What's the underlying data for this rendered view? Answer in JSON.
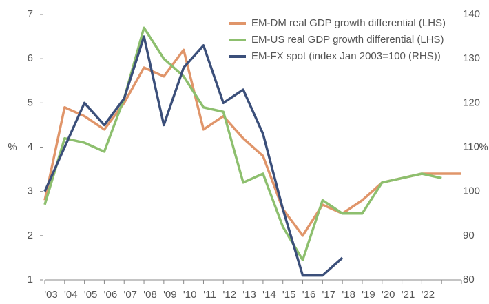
{
  "chart_data": {
    "type": "line",
    "categories": [
      "'03",
      "'04",
      "'05",
      "'06",
      "'07",
      "'08",
      "'09",
      "'10",
      "'11",
      "'12",
      "'13",
      "'14",
      "'15",
      "'16",
      "'17",
      "'18",
      "'19",
      "'20",
      "'21",
      "'22",
      null,
      null
    ],
    "ylim": [
      1,
      7
    ],
    "yticks": [
      1,
      2,
      3,
      4,
      5,
      6,
      7
    ],
    "ylabel": "%",
    "y2lim": [
      80,
      140
    ],
    "y2ticks": [
      80,
      90,
      100,
      110,
      120,
      130,
      140
    ],
    "y2label": "%",
    "series": [
      {
        "name": "EM-DM real GDP growth differential (LHS)",
        "color": "#e0956a",
        "values": [
          2.8,
          4.9,
          4.7,
          4.4,
          5.0,
          5.8,
          5.6,
          6.2,
          4.4,
          4.7,
          4.2,
          3.8,
          2.6,
          2.0,
          2.7,
          2.5,
          2.8,
          3.2,
          3.3,
          3.4,
          3.4,
          3.4
        ]
      },
      {
        "name": "EM-US real GDP growth differential (LHS)",
        "color": "#8dbf6e",
        "values": [
          2.7,
          4.2,
          4.1,
          3.9,
          5.1,
          6.7,
          6.0,
          5.6,
          4.9,
          4.8,
          3.2,
          3.4,
          2.2,
          1.45,
          2.8,
          2.5,
          2.5,
          3.2,
          3.3,
          3.4,
          3.3,
          null
        ]
      },
      {
        "name": "EM-FX spot (index Jan 2003=100 (RHS))",
        "color": "#3b4f7a",
        "axis": "y2",
        "values": [
          100,
          110,
          120,
          115,
          121,
          135,
          115,
          128,
          133,
          120,
          123,
          113,
          96,
          81,
          81,
          85,
          null,
          null,
          null,
          null,
          null,
          null
        ]
      }
    ]
  }
}
